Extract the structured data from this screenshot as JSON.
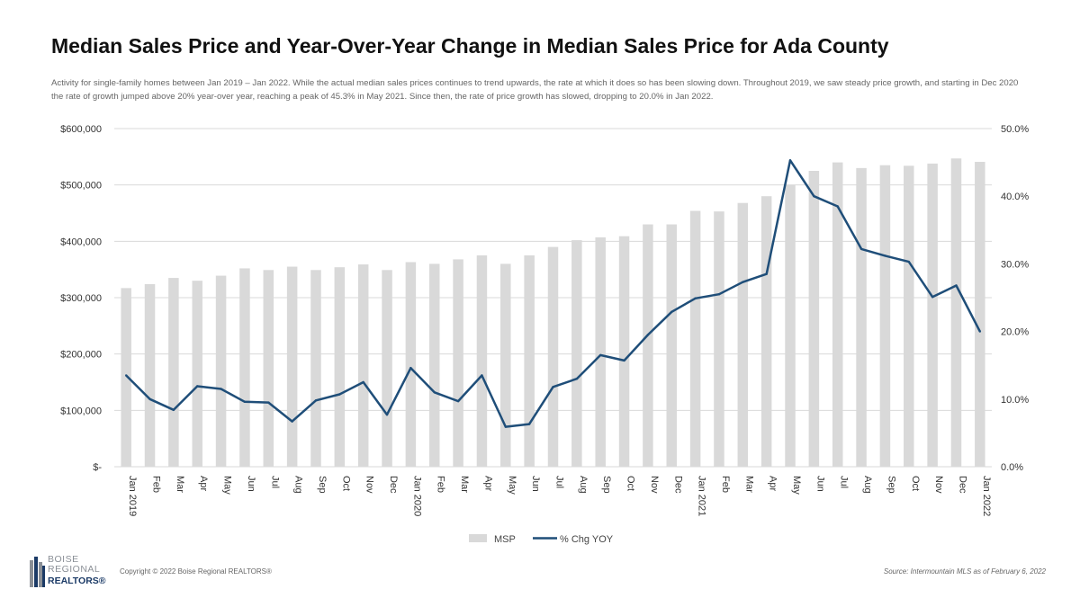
{
  "page": {
    "title": "Median Sales Price and Year-Over-Year Change in Median Sales Price for Ada County",
    "subtitle": "Activity for single-family homes between Jan 2019 – Jan 2022. While the actual median sales prices continues to trend upwards, the rate at which it does so has been slowing down. Throughout 2019, we saw steady price growth, and starting in Dec 2020 the rate of growth jumped above 20% year-over year, reaching a peak of 45.3% in May 2021. Since then, the rate of price growth has slowed, dropping to 20.0% in Jan 2022.",
    "copyright": "Copyright © 2022 Boise Regional REALTORS®",
    "source": "Source: Intermountain MLS as of February 6, 2022",
    "logo": {
      "line1": "BOISE",
      "line2": "REGIONAL",
      "line3": "REALTORS®"
    }
  },
  "colors": {
    "bar": "#d9d9d9",
    "line": "#1f4e79",
    "grid": "#d9d9d9"
  },
  "chart_data": {
    "type": "bar",
    "categories": [
      "Jan 2019",
      "Feb",
      "Mar",
      "Apr",
      "May",
      "Jun",
      "Jul",
      "Aug",
      "Sep",
      "Oct",
      "Nov",
      "Dec",
      "Jan 2020",
      "Feb",
      "Mar",
      "Apr",
      "May",
      "Jun",
      "Jul",
      "Aug",
      "Sep",
      "Oct",
      "Nov",
      "Dec",
      "Jan 2021",
      "Feb",
      "Mar",
      "Apr",
      "May",
      "Jun",
      "Jul",
      "Aug",
      "Sep",
      "Oct",
      "Nov",
      "Dec",
      "Jan 2022"
    ],
    "series": [
      {
        "name": "MSP",
        "type": "bar",
        "axis": "left",
        "values": [
          317000,
          324000,
          335000,
          330000,
          339000,
          352000,
          349000,
          355000,
          349000,
          354000,
          359000,
          349000,
          363000,
          360000,
          368000,
          375000,
          360000,
          375000,
          390000,
          402000,
          407000,
          409000,
          430000,
          430000,
          454000,
          453000,
          468000,
          480000,
          500000,
          525000,
          540000,
          530000,
          535000,
          534000,
          538000,
          547000,
          541000
        ]
      },
      {
        "name": "% Chg YOY",
        "type": "line",
        "axis": "right",
        "values": [
          13.5,
          10.0,
          8.4,
          11.9,
          11.5,
          9.6,
          9.5,
          6.7,
          9.8,
          10.7,
          12.5,
          7.7,
          14.6,
          11.0,
          9.7,
          13.5,
          5.9,
          6.3,
          11.8,
          13.0,
          16.5,
          15.7,
          19.5,
          22.9,
          24.9,
          25.5,
          27.3,
          28.5,
          45.3,
          40.0,
          38.5,
          32.2,
          31.2,
          30.3,
          25.1,
          26.8,
          20.0
        ]
      }
    ],
    "y_left": {
      "ylim": [
        0,
        600000
      ],
      "ticks": [
        "$-",
        "$100,000",
        "$200,000",
        "$300,000",
        "$400,000",
        "$500,000",
        "$600,000"
      ]
    },
    "y_right": {
      "ylim": [
        0,
        50
      ],
      "ticks": [
        "0.0%",
        "10.0%",
        "20.0%",
        "30.0%",
        "40.0%",
        "50.0%"
      ]
    },
    "grid": true,
    "legend": "bottom-center"
  }
}
